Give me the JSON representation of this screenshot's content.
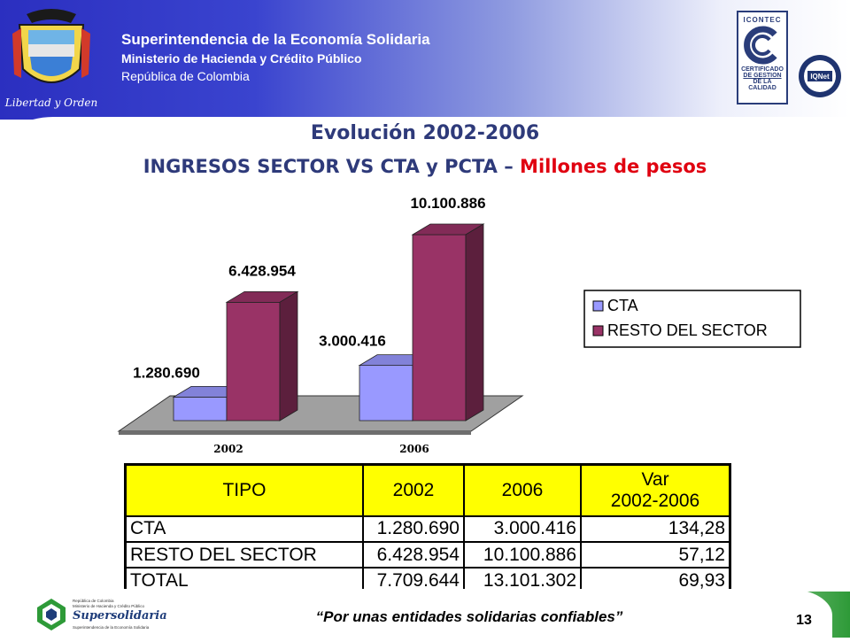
{
  "header": {
    "org_line1": "Superintendencia de la Economía Solidaria",
    "org_line2": "Ministerio de Hacienda y Crédito Público",
    "org_line3": "República de Colombia",
    "crest_motto": "Libertad y Orden",
    "cert_top": "ICONTEC",
    "cert_lines": [
      "CERTIFICADO",
      "DE GESTION",
      "DE LA CALIDAD"
    ],
    "iqnet_label": "IQNet"
  },
  "titles": {
    "main": "Evolución 2002-2006",
    "sub_prefix": "INGRESOS SECTOR VS CTA y PCTA – ",
    "sub_highlight": "Millones de pesos"
  },
  "chart_data": {
    "type": "bar",
    "categories": [
      "2002",
      "2006"
    ],
    "series": [
      {
        "name": "CTA",
        "values": [
          1280690,
          3000416
        ],
        "labels": [
          "1.280.690",
          "3.000.416"
        ],
        "color": "#9999ff"
      },
      {
        "name": "RESTO DEL SECTOR",
        "values": [
          6428954,
          10100886
        ],
        "labels": [
          "6.428.954",
          "10.100.886"
        ],
        "color": "#993366"
      }
    ],
    "ylim": [
      0,
      10100886
    ],
    "legend": "right",
    "grid": false
  },
  "table": {
    "headers": [
      "TIPO",
      "2002",
      "2006",
      "Var",
      "2002-2006"
    ],
    "rows": [
      [
        "CTA",
        "1.280.690",
        "3.000.416",
        "134,28"
      ],
      [
        "RESTO DEL SECTOR",
        "6.428.954",
        "10.100.886",
        "57,12"
      ],
      [
        "TOTAL",
        "7.709.644",
        "13.101.302",
        "69,93"
      ]
    ]
  },
  "footer": {
    "slogan": "“Por unas entidades solidarias confiables”",
    "page_number": "13",
    "logo_name": "Supersolidaria",
    "logo_small_1": "República de Colombia",
    "logo_small_2": "Ministerio de Hacienda y Crédito Público",
    "logo_small_3": "Superintendencia de la Economía Solidaria"
  },
  "colors": {
    "header_blue": "#2b2fc0",
    "title_blue": "#2e3a7a",
    "highlight_red": "#e00010",
    "table_header": "#ffff00",
    "footer_green": "#2e9a38"
  }
}
